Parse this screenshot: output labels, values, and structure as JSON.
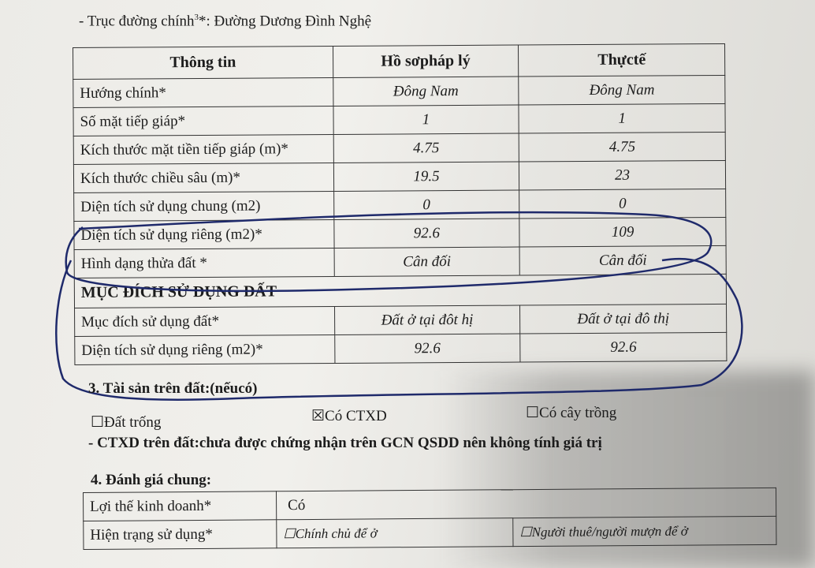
{
  "main_road": {
    "label": "- Trục đường chính",
    "sup": "3",
    "rest": "*: Đường Dương Đình Nghệ"
  },
  "info_table": {
    "headers": [
      "Thông tin",
      "Hồ sơpháp lý",
      "Thựctế"
    ],
    "rows": [
      [
        "Hướng chính*",
        "Đông Nam",
        "Đông Nam"
      ],
      [
        "Số mặt tiếp giáp*",
        "1",
        "1"
      ],
      [
        "Kích thước mặt tiền tiếp giáp (m)*",
        "4.75",
        "4.75"
      ],
      [
        "Kích thước chiều sâu (m)*",
        "19.5",
        "23"
      ],
      [
        "Diện tích sử dụng chung (m2)",
        "0",
        "0"
      ],
      [
        "Diện tích sử dụng riêng (m2)*",
        "92.6",
        "109"
      ],
      [
        "Hình dạng thửa đất *",
        "Cân đối",
        "Cân đối"
      ]
    ],
    "section_title": "MỤC ĐÍCH SỬ DỤNG ĐẤT",
    "section_rows": [
      [
        "Mục đích sử dụng đất*",
        "Đất ở tại đôt hị",
        "Đất ở tại đô thị"
      ],
      [
        "Diện tích sử dụng riêng (m2)*",
        "92.6",
        "92.6"
      ]
    ]
  },
  "assets": {
    "title": "3. Tài sản trên đất:(nếucó)",
    "options": [
      {
        "label": "Đất trống",
        "checked": false
      },
      {
        "label": "Có CTXD",
        "checked": true
      },
      {
        "label": "Có cây trồng",
        "checked": false
      }
    ],
    "note": "- CTXD trên đất:chưa được chứng nhận trên GCN QSDD nên không tính giá trị"
  },
  "evaluation": {
    "title": "4. Đánh giá chung:",
    "rows": [
      {
        "label": "Lợi thế kinh doanh*",
        "value": "Có"
      },
      {
        "label": "Hiện trạng sử dụng*",
        "opt1": "Chính chủ để ở",
        "opt2": "Người thuê/người mượn để ở"
      }
    ]
  },
  "colors": {
    "ink_annotation": "#1f2a6b"
  }
}
